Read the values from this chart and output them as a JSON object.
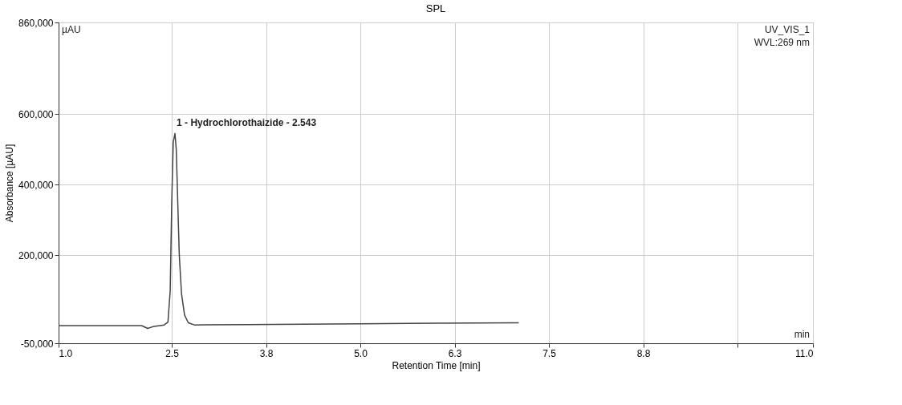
{
  "chart_data": {
    "type": "line",
    "title": "SPL",
    "xlabel": "Retention Time [min]",
    "ylabel": "Absorbance [µAU]",
    "x": [
      1.0,
      1.6,
      2.1,
      2.18,
      2.25,
      2.4,
      2.45,
      2.48,
      2.5,
      2.52,
      2.543,
      2.56,
      2.58,
      2.6,
      2.63,
      2.67,
      2.72,
      2.8,
      3.5,
      5.0,
      6.0,
      7.1
    ],
    "series": [
      {
        "color": "#444444",
        "values": [
          0,
          0,
          0,
          -8000,
          -3000,
          2000,
          10000,
          100000,
          350000,
          520000,
          545000,
          500000,
          350000,
          200000,
          90000,
          30000,
          8000,
          2000,
          3000,
          5000,
          7000,
          8000
        ]
      }
    ],
    "xlim": [
      1.0,
      11.0
    ],
    "xticks": [
      {
        "value": 1.0,
        "label": "1.0"
      },
      {
        "value": 2.5,
        "label": "2.5"
      },
      {
        "value": 3.75,
        "label": "3.8"
      },
      {
        "value": 5.0,
        "label": "5.0"
      },
      {
        "value": 6.25,
        "label": "6.3"
      },
      {
        "value": 7.5,
        "label": "7.5"
      },
      {
        "value": 8.75,
        "label": "8.8"
      },
      {
        "value": 10.0,
        "label": null
      },
      {
        "value": 11.0,
        "label": "11.0"
      }
    ],
    "ylim": [
      -50000,
      860000
    ],
    "yticks": [
      {
        "value": -50000,
        "label": "-50,000"
      },
      {
        "value": 200000,
        "label": "200,000"
      },
      {
        "value": 400000,
        "label": "400,000"
      },
      {
        "value": 600000,
        "label": "600,000"
      },
      {
        "value": 860000,
        "label": "860,000"
      }
    ],
    "grid": true,
    "line_style": "solid",
    "marker": "none",
    "annotations": [
      {
        "text": "1 - Hydrochlorothaizide - 2.543",
        "x": 2.543,
        "y": 545000
      },
      "µAU",
      "UV_VIS_1",
      "WVL:269 nm",
      "min"
    ]
  }
}
